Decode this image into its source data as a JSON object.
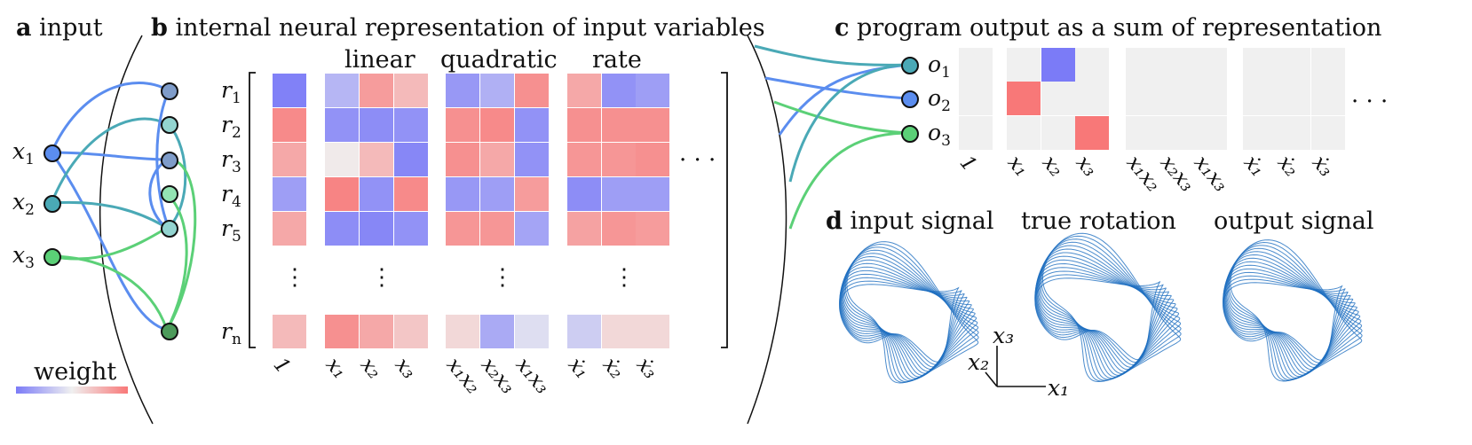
{
  "panels": {
    "a": {
      "letter": "a",
      "title": "input"
    },
    "b": {
      "letter": "b",
      "title": "internal neural representation of input variables"
    },
    "c": {
      "letter": "c",
      "title": "program output as a sum of representation"
    },
    "d": {
      "letter": "d",
      "title": "input signal"
    }
  },
  "panel_d_titles": {
    "true_rotation": "true rotation",
    "output_signal": "output signal"
  },
  "inputs": [
    {
      "var": "x",
      "sub": "1",
      "color": "#5b8def"
    },
    {
      "var": "x",
      "sub": "2",
      "color": "#4aa9b6"
    },
    {
      "var": "x",
      "sub": "3",
      "color": "#5bd077"
    }
  ],
  "neuron_colors": [
    "#7f9cc9",
    "#93d4d0",
    "#7f9cc9",
    "#93e3b3",
    "#93d4d0",
    "#4c9a5a"
  ],
  "groups": {
    "linear": "linear",
    "quadratic": "quadratic",
    "rate": "rate"
  },
  "rows": [
    {
      "var": "r",
      "sub": "1"
    },
    {
      "var": "r",
      "sub": "2"
    },
    {
      "var": "r",
      "sub": "3"
    },
    {
      "var": "r",
      "sub": "4"
    },
    {
      "var": "r",
      "sub": "5"
    },
    {
      "var": "r",
      "sub": "n"
    }
  ],
  "ellipsis": "⋮",
  "hellipsis": "· · ·",
  "b_ticks": [
    "1",
    "x₁",
    "x₂",
    "x₃",
    "x₁x₂",
    "x₂x₃",
    "x₁x₃",
    "ẋ₁",
    "ẋ₂",
    "ẋ₃"
  ],
  "weights": [
    [
      -0.95,
      -0.5,
      0.7,
      0.45,
      -0.75,
      -0.55,
      0.8,
      0.6,
      -0.8,
      -0.7
    ],
    [
      0.85,
      -0.8,
      -0.85,
      -0.8,
      0.8,
      0.85,
      -0.8,
      0.8,
      0.8,
      0.8
    ],
    [
      0.6,
      0.05,
      0.45,
      -0.9,
      0.8,
      0.6,
      -0.8,
      0.75,
      0.75,
      0.8
    ],
    [
      -0.7,
      0.9,
      -0.8,
      0.85,
      -0.75,
      -0.7,
      0.7,
      -0.85,
      -0.7,
      -0.7
    ],
    [
      0.6,
      -0.85,
      -0.9,
      -0.8,
      0.75,
      0.75,
      -0.65,
      0.65,
      0.75,
      0.7
    ],
    [
      0.45,
      0.8,
      0.6,
      0.35,
      0.2,
      -0.6,
      -0.15,
      -0.3,
      0.2,
      0.2
    ]
  ],
  "outputs": [
    {
      "var": "o",
      "sub": "1",
      "color": "#4aa9b6"
    },
    {
      "var": "o",
      "sub": "2",
      "color": "#5b8def"
    },
    {
      "var": "o",
      "sub": "3",
      "color": "#5bd077"
    }
  ],
  "c_ticks": [
    "1",
    "x₁",
    "x₂",
    "x₃",
    "x₁x₂",
    "x₂x₃",
    "x₁x₃",
    "ẋ₁",
    "ẋ₂",
    "ẋ₃"
  ],
  "c_weights": [
    [
      0,
      0,
      -1,
      0,
      0,
      0,
      0,
      0,
      0,
      0
    ],
    [
      0,
      1,
      0,
      0,
      0,
      0,
      0,
      0,
      0,
      0
    ],
    [
      0,
      0,
      0,
      1,
      0,
      0,
      0,
      0,
      0,
      0
    ]
  ],
  "colorbar": {
    "label": "weight",
    "neg_color": "#7b7bf7",
    "pos_color": "#f87878"
  },
  "axes": {
    "x1": "x₁",
    "x2": "x₂",
    "x3": "x₃"
  },
  "attractor_color": "#1f6fc0"
}
